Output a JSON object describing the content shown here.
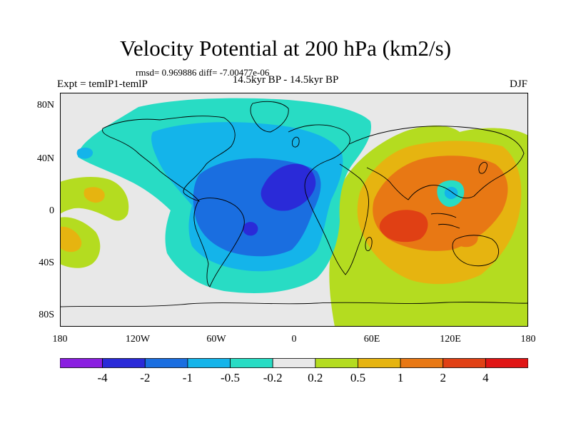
{
  "title": "Velocity Potential at 200 hPa (km2/s)",
  "stats": "rmsd= 0.969886 diff= -7.00477e-06",
  "left_label": "Expt = temlP1-temlP",
  "center_label": "14.5kyr BP - 14.5kyr BP",
  "right_label": "DJF",
  "y_ticks": [
    "80N",
    "40N",
    "0",
    "40S",
    "80S"
  ],
  "x_ticks": [
    "180",
    "120W",
    "60W",
    "0",
    "60E",
    "120E",
    "180"
  ],
  "colorbar": {
    "labels": [
      "-4",
      "-2",
      "-1",
      "-0.5",
      "-0.2",
      "0.2",
      "0.5",
      "1",
      "2",
      "4"
    ],
    "colors": [
      "#8a1ee0",
      "#2a2ad8",
      "#1a6ee0",
      "#14b4ea",
      "#28dcc4",
      "#e8e8e8",
      "#b4dc20",
      "#e6b410",
      "#e87814",
      "#e04014",
      "#e01414"
    ]
  },
  "map_colors": {
    "neutral": "#e8e8e8",
    "light_pos": "#b4dc20",
    "pos1": "#e6b410",
    "pos2": "#e87814",
    "pos3": "#e04014",
    "light_neg": "#28dcc4",
    "neg1": "#14b4ea",
    "neg2": "#1a6ee0",
    "neg3": "#2a2ad8"
  }
}
